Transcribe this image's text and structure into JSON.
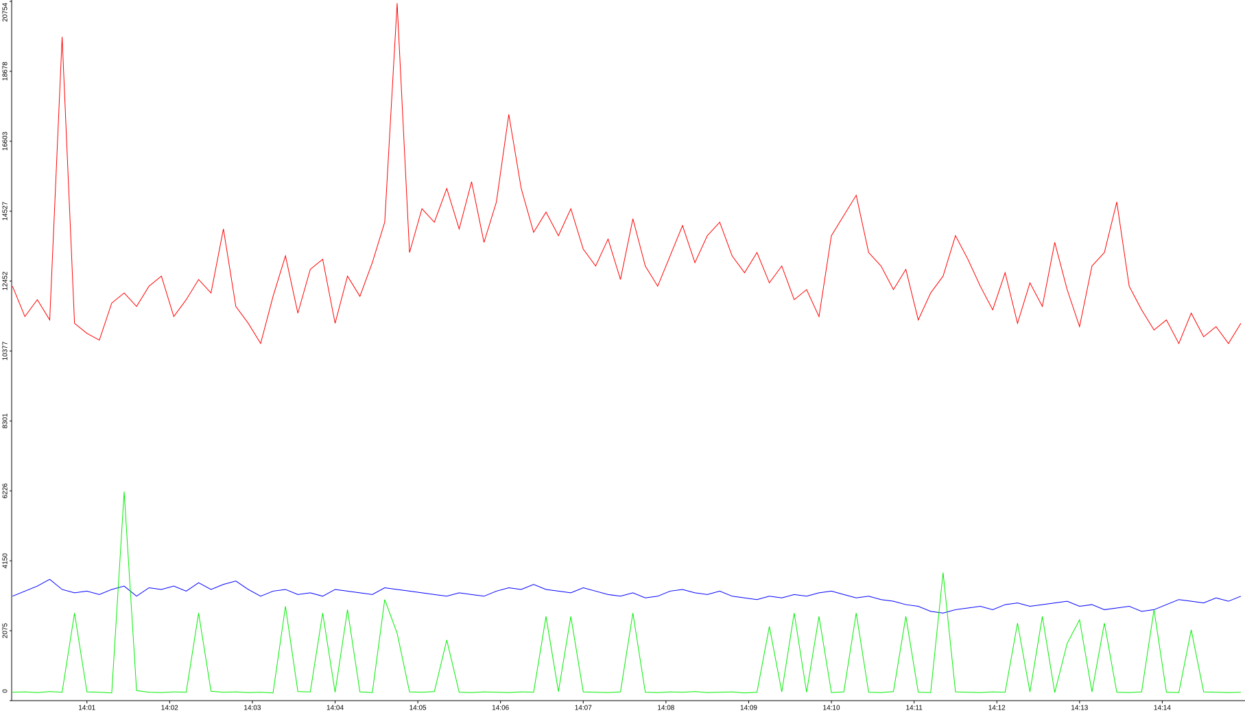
{
  "chart_data": {
    "type": "line",
    "x": [
      0.1,
      0.25,
      0.4,
      0.55,
      0.7,
      0.85,
      1.0,
      1.15,
      1.3,
      1.45,
      1.6,
      1.75,
      1.9,
      2.05,
      2.2,
      2.35,
      2.5,
      2.65,
      2.8,
      2.95,
      3.1,
      3.25,
      3.4,
      3.55,
      3.7,
      3.85,
      4.0,
      4.15,
      4.3,
      4.45,
      4.6,
      4.75,
      4.9,
      5.05,
      5.2,
      5.35,
      5.5,
      5.65,
      5.8,
      5.95,
      6.1,
      6.25,
      6.4,
      6.55,
      6.7,
      6.85,
      7.0,
      7.15,
      7.3,
      7.45,
      7.6,
      7.75,
      7.9,
      8.05,
      8.2,
      8.35,
      8.5,
      8.65,
      8.8,
      8.95,
      9.1,
      9.25,
      9.4,
      9.55,
      9.7,
      9.85,
      10.0,
      10.15,
      10.3,
      10.45,
      10.6,
      10.75,
      10.9,
      11.05,
      11.2,
      11.35,
      11.5,
      11.65,
      11.8,
      11.95,
      12.1,
      12.25,
      12.4,
      12.55,
      12.7,
      12.85,
      13.0,
      13.15,
      13.3,
      13.45,
      13.6,
      13.75,
      13.9,
      14.05,
      14.2,
      14.35,
      14.5,
      14.65,
      14.8,
      14.95
    ],
    "series": [
      {
        "color": "#ff0000",
        "values": [
          12300,
          11400,
          11900,
          11300,
          19700,
          11200,
          10900,
          10700,
          11800,
          12100,
          11700,
          12300,
          12600,
          11400,
          11900,
          12500,
          12100,
          14000,
          11700,
          11200,
          10600,
          12000,
          13200,
          11500,
          12800,
          13100,
          11200,
          12600,
          12000,
          13000,
          14200,
          20700,
          13300,
          14600,
          14200,
          15200,
          14000,
          15400,
          13600,
          14800,
          17400,
          15200,
          13900,
          14500,
          13800,
          14600,
          13400,
          12900,
          13700,
          12500,
          14300,
          12900,
          12300,
          13200,
          14100,
          13000,
          13800,
          14200,
          13200,
          12700,
          13300,
          12400,
          12900,
          11900,
          12200,
          11400,
          13800,
          14400,
          15000,
          13300,
          12900,
          12200,
          12800,
          11300,
          12100,
          12600,
          13800,
          13100,
          12300,
          11600,
          12700,
          11200,
          12400,
          11700,
          13600,
          12200,
          11100,
          12900,
          13300,
          14800,
          12300,
          11600,
          11000,
          11300,
          10600,
          11500,
          10800,
          11100,
          10600,
          11200
        ]
      },
      {
        "color": "#0000ff",
        "values": [
          3100,
          3250,
          3400,
          3600,
          3300,
          3200,
          3250,
          3150,
          3300,
          3400,
          3100,
          3350,
          3300,
          3400,
          3250,
          3500,
          3300,
          3450,
          3550,
          3300,
          3100,
          3250,
          3300,
          3150,
          3200,
          3100,
          3300,
          3250,
          3200,
          3150,
          3350,
          3300,
          3250,
          3200,
          3150,
          3100,
          3200,
          3150,
          3100,
          3250,
          3350,
          3300,
          3450,
          3300,
          3250,
          3200,
          3350,
          3250,
          3150,
          3100,
          3200,
          3050,
          3100,
          3250,
          3300,
          3200,
          3150,
          3250,
          3100,
          3050,
          3000,
          3100,
          3050,
          3150,
          3100,
          3200,
          3250,
          3150,
          3050,
          3100,
          3000,
          2950,
          2850,
          2800,
          2650,
          2600,
          2700,
          2750,
          2800,
          2700,
          2850,
          2900,
          2800,
          2850,
          2900,
          2950,
          2800,
          2850,
          2700,
          2750,
          2800,
          2650,
          2700,
          2850,
          3000,
          2950,
          2900,
          3050,
          2950,
          3100
        ]
      },
      {
        "color": "#00ee00",
        "values": [
          250,
          260,
          240,
          270,
          250,
          2600,
          260,
          250,
          230,
          6200,
          300,
          250,
          240,
          260,
          250,
          2600,
          280,
          250,
          260,
          240,
          250,
          230,
          2800,
          270,
          260,
          2600,
          250,
          2700,
          260,
          240,
          3000,
          2000,
          260,
          250,
          270,
          1800,
          250,
          240,
          260,
          250,
          240,
          260,
          250,
          2500,
          270,
          2500,
          260,
          250,
          240,
          260,
          2600,
          250,
          240,
          260,
          250,
          270,
          240,
          250,
          260,
          230,
          250,
          2200,
          260,
          2600,
          250,
          2500,
          240,
          260,
          2600,
          250,
          240,
          270,
          2500,
          250,
          240,
          3800,
          260,
          250,
          240,
          260,
          250,
          2300,
          260,
          2500,
          240,
          1700,
          2400,
          260,
          2300,
          250,
          240,
          260,
          2700,
          250,
          240,
          2100,
          260,
          250,
          240,
          250
        ]
      }
    ],
    "xlim": [
      0.09,
      15.0
    ],
    "ylim": [
      0,
      20754
    ],
    "xticks": [
      {
        "value": 1,
        "label": "14:01"
      },
      {
        "value": 2,
        "label": "14:02"
      },
      {
        "value": 3,
        "label": "14:03"
      },
      {
        "value": 4,
        "label": "14:04"
      },
      {
        "value": 5,
        "label": "14:05"
      },
      {
        "value": 6,
        "label": "14:06"
      },
      {
        "value": 7,
        "label": "14:07"
      },
      {
        "value": 8,
        "label": "14:08"
      },
      {
        "value": 9,
        "label": "14:09"
      },
      {
        "value": 10,
        "label": "14:10"
      },
      {
        "value": 11,
        "label": "14:11"
      },
      {
        "value": 12,
        "label": "14:12"
      },
      {
        "value": 13,
        "label": "14:13"
      },
      {
        "value": 14,
        "label": "14:14"
      }
    ],
    "yticks": [
      0,
      2075,
      4150,
      6226,
      8301,
      10377,
      12452,
      14527,
      16603,
      18678,
      20754
    ],
    "grid": false
  }
}
